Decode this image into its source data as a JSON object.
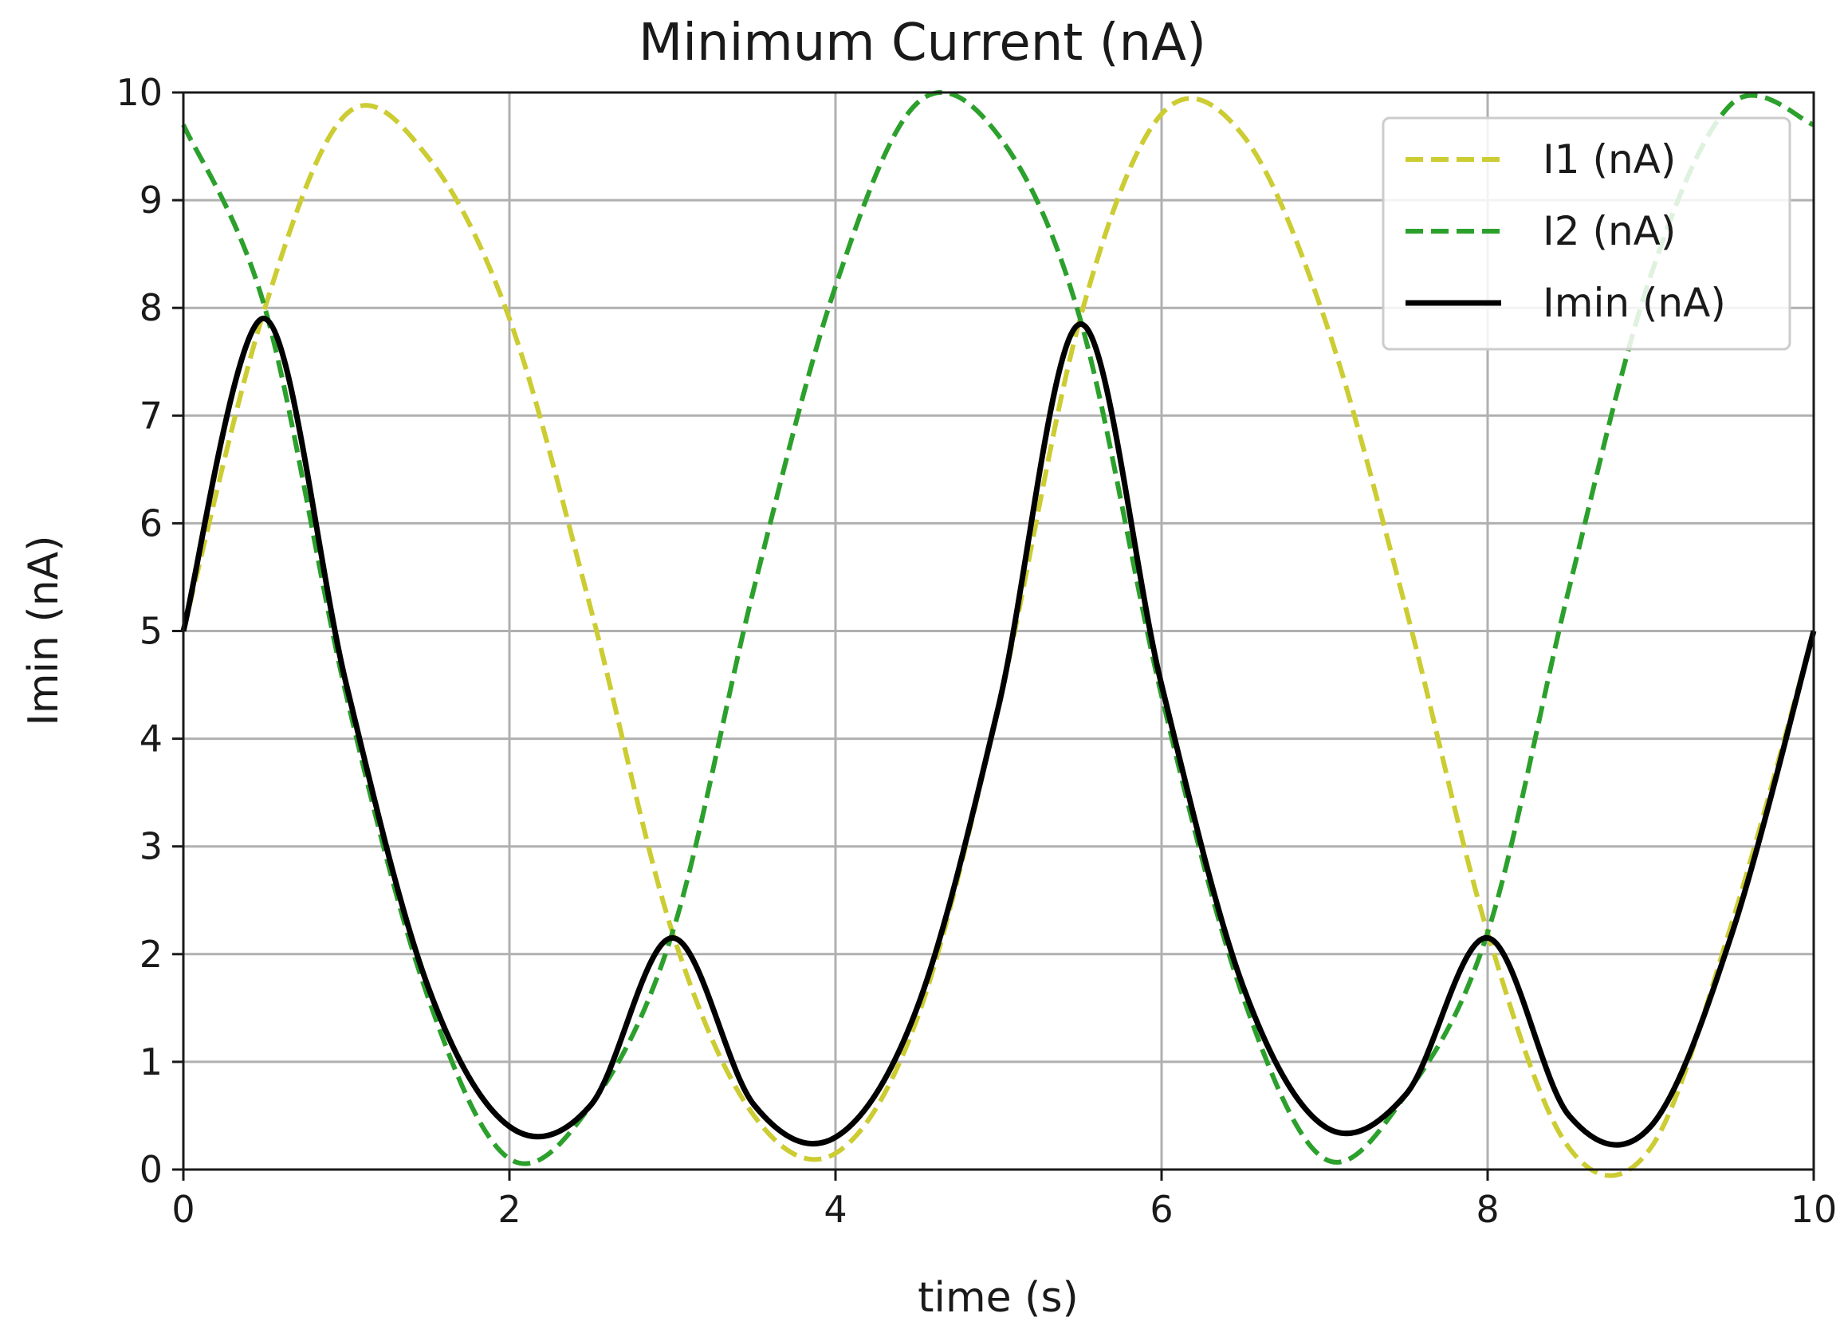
{
  "chart_data": {
    "type": "line",
    "title": "Minimum Current (nA)",
    "xlabel": "time (s)",
    "ylabel": "Imin (nA)",
    "xlim": [
      0,
      10
    ],
    "ylim": [
      0,
      10
    ],
    "xticks": [
      "0",
      "2",
      "4",
      "6",
      "8",
      "10"
    ],
    "yticks": [
      "0",
      "1",
      "2",
      "3",
      "4",
      "5",
      "6",
      "7",
      "8",
      "9",
      "10"
    ],
    "grid": true,
    "legend_position": "top-right",
    "x": [
      0,
      0.5,
      1.0,
      1.5,
      2.0,
      2.5,
      3.0,
      3.5,
      4.0,
      4.5,
      5.0,
      5.5,
      6.0,
      6.5,
      7.0,
      7.5,
      8.0,
      8.5,
      9.0,
      9.5,
      10.0
    ],
    "series": [
      {
        "name": "I1 (nA)",
        "color": "#cccc33",
        "style": "dashed",
        "values": [
          5.0,
          8.0,
          9.8,
          9.4,
          7.9,
          5.2,
          2.2,
          0.5,
          0.15,
          1.4,
          4.3,
          7.9,
          9.8,
          9.6,
          7.9,
          5.2,
          2.2,
          0.2,
          0.2,
          2.3,
          5.0
        ]
      },
      {
        "name": "I2 (nA)",
        "color": "#2ca02c",
        "style": "dashed",
        "values": [
          9.7,
          8.0,
          4.4,
          1.6,
          0.1,
          0.6,
          2.2,
          5.4,
          8.2,
          9.9,
          9.6,
          7.9,
          4.4,
          1.6,
          0.1,
          0.7,
          2.2,
          5.4,
          8.3,
          9.9,
          9.7
        ]
      },
      {
        "name": "Imin (nA)",
        "color": "#000000",
        "style": "solid",
        "values": [
          5.0,
          7.9,
          4.5,
          1.7,
          0.4,
          0.6,
          2.15,
          0.6,
          0.3,
          1.5,
          4.3,
          7.85,
          4.5,
          1.7,
          0.4,
          0.7,
          2.15,
          0.5,
          0.4,
          2.2,
          5.0
        ]
      }
    ]
  }
}
